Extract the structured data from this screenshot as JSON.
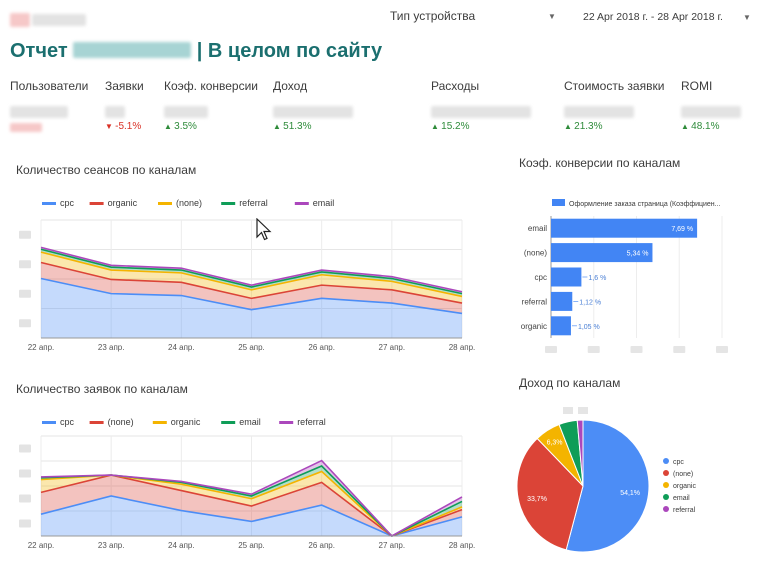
{
  "header": {
    "device_type_label": "Тип устройства",
    "date_range": "22 Apr 2018 г. - 28 Apr 2018 г.",
    "title_prefix": "Отчет",
    "title_suffix": "| В целом по сайту"
  },
  "metrics": [
    {
      "label": "Пользователи",
      "delta": "",
      "dir": ""
    },
    {
      "label": "Заявки",
      "delta": "-5.1%",
      "dir": "down"
    },
    {
      "label": "Коэф. конверсии",
      "delta": "3.5%",
      "dir": "up"
    },
    {
      "label": "Доход",
      "delta": "51.3%",
      "dir": "up"
    },
    {
      "label": "Расходы",
      "delta": "15.2%",
      "dir": "up"
    },
    {
      "label": "Стоимость заявки",
      "delta": "21.3%",
      "dir": "up"
    },
    {
      "label": "ROMI",
      "delta": "48.1%",
      "dir": "up"
    }
  ],
  "colors": {
    "cpc": "#4c8df6",
    "organic": "#db4437",
    "none": "#f4b400",
    "referral": "#0f9d58",
    "email": "#ab47bc",
    "bar": "#4285f4"
  },
  "chart_data": [
    {
      "type": "area",
      "title": "Количество сеансов по каналам",
      "stacked": true,
      "categories": [
        "22 апр.",
        "23 апр.",
        "24 апр.",
        "25 апр.",
        "26 апр.",
        "27 апр.",
        "28 апр."
      ],
      "ylim": [
        0,
        125
      ],
      "legend_position": "top",
      "series": [
        {
          "name": "cpc",
          "key": "cpc",
          "values": [
            63,
            47,
            45,
            30,
            42,
            37,
            26
          ]
        },
        {
          "name": "organic",
          "key": "organic",
          "values": [
            17,
            15,
            14,
            12,
            14,
            14,
            11
          ]
        },
        {
          "name": "(none)",
          "key": "none",
          "values": [
            11,
            10,
            10,
            9,
            11,
            9,
            7
          ]
        },
        {
          "name": "referral",
          "key": "referral",
          "values": [
            3,
            3,
            3,
            3,
            3,
            3,
            3
          ]
        },
        {
          "name": "email",
          "key": "email",
          "values": [
            2,
            2,
            2,
            2,
            2,
            2,
            2
          ]
        }
      ]
    },
    {
      "type": "bar",
      "orientation": "horizontal",
      "title": "Коэф. конверсии по каналам",
      "legend": "Оформление заказа страница (Коэффициен...",
      "categories": [
        "email",
        "(none)",
        "cpc",
        "referral",
        "organic"
      ],
      "values": [
        7.69,
        5.34,
        1.6,
        1.12,
        1.05
      ],
      "data_labels": [
        "7,69 %",
        "5,34 %",
        "1,6 %",
        "1,12 %",
        "1,05 %"
      ],
      "xlim": [
        0,
        9
      ]
    },
    {
      "type": "area",
      "title": "Количество заявок по каналам",
      "stacked": true,
      "categories": [
        "22 апр.",
        "23 апр.",
        "24 апр.",
        "25 апр.",
        "26 апр.",
        "27 апр.",
        "28 апр."
      ],
      "ylim": [
        0,
        11
      ],
      "legend_position": "top",
      "series": [
        {
          "name": "cpc",
          "key": "cpc",
          "values": [
            2.4,
            4.4,
            2.8,
            1.6,
            3.4,
            0,
            2.1
          ]
        },
        {
          "name": "(none)",
          "key": "organic",
          "values": [
            2.4,
            2.3,
            2.2,
            1.7,
            2.5,
            0,
            0.8
          ]
        },
        {
          "name": "organic",
          "key": "none",
          "values": [
            1.4,
            0,
            0.7,
            0.8,
            1.2,
            0,
            0.3
          ]
        },
        {
          "name": "email",
          "key": "referral",
          "values": [
            0.2,
            0,
            0.2,
            0.3,
            0.6,
            0,
            0.6
          ]
        },
        {
          "name": "referral",
          "key": "email",
          "values": [
            0.1,
            0,
            0.1,
            0.2,
            0.6,
            0,
            0.5
          ]
        }
      ]
    },
    {
      "type": "pie",
      "title": "Доход  по каналам",
      "legend": [
        "cpc",
        "(none)",
        "organic",
        "email",
        "referral"
      ],
      "keys": [
        "cpc",
        "organic",
        "none",
        "referral",
        "email"
      ],
      "values": [
        54.1,
        33.7,
        6.3,
        4.5,
        1.4
      ],
      "data_labels": [
        "54,1%",
        "33,7%",
        "6,3%",
        "",
        ""
      ]
    }
  ]
}
